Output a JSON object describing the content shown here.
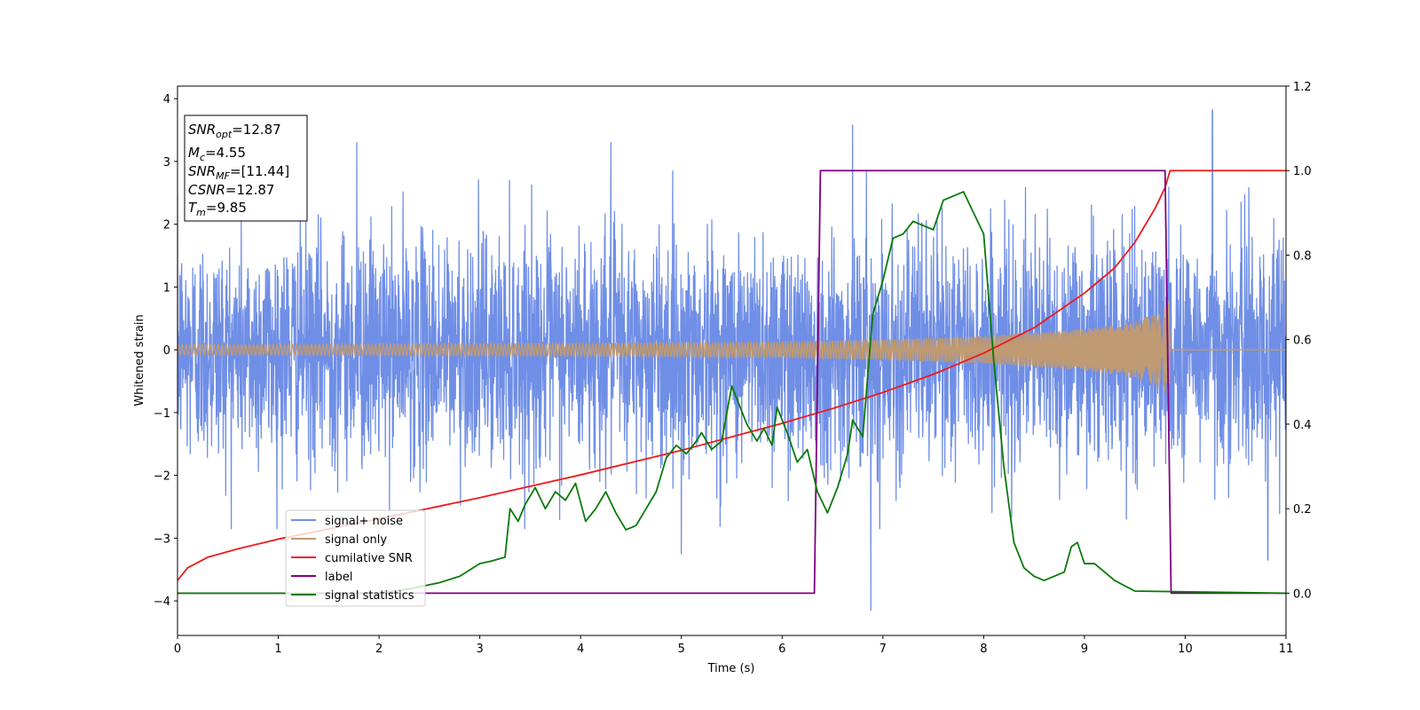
{
  "chart_data": {
    "type": "line",
    "xlabel": "Time (s)",
    "ylabel": "Whitened strain",
    "xlim": [
      0,
      11
    ],
    "ylim": [
      -4.55,
      4.2
    ],
    "ylim_right": [
      -0.1,
      1.2
    ],
    "x_ticks": [
      "0",
      "1",
      "2",
      "3",
      "4",
      "5",
      "6",
      "7",
      "8",
      "9",
      "10",
      "11"
    ],
    "y_ticks": [
      "−4",
      "−3",
      "−2",
      "−1",
      "0",
      "1",
      "2",
      "3",
      "4"
    ],
    "y_ticks_right": [
      "0.0",
      "0.2",
      "0.4",
      "0.6",
      "0.8",
      "1.0",
      "1.2"
    ],
    "grid": false,
    "legend_position": "lower-left",
    "info_box": {
      "lines": [
        {
          "name": "SNR",
          "sub": "opt",
          "value": "=12.87"
        },
        {
          "name": "M",
          "sub": "c",
          "value": "=4.55"
        },
        {
          "name": "SNR",
          "sub": "MF",
          "value": "=[11.44]"
        },
        {
          "name": "CSNR",
          "sub": "",
          "value": "=12.87"
        },
        {
          "name": "T",
          "sub": "m",
          "value": "=9.85"
        }
      ]
    },
    "series": [
      {
        "name": "signal+ noise",
        "axis": "left",
        "color": "#6f8ee6",
        "kind": "noise",
        "noise_sigma": 0.9,
        "t_range": [
          0,
          11
        ],
        "notable_extremes": [
          [
            1.78,
            3.3
          ],
          [
            4.3,
            3.3
          ],
          [
            6.7,
            3.58
          ],
          [
            6.88,
            -4.15
          ],
          [
            10.27,
            3.82
          ],
          [
            5.0,
            -3.25
          ],
          [
            10.82,
            -3.35
          ]
        ]
      },
      {
        "name": "signal only",
        "axis": "left",
        "color": "#bf9a73",
        "kind": "chirp",
        "amplitude_points": [
          [
            0,
            0.08
          ],
          [
            2,
            0.09
          ],
          [
            4,
            0.1
          ],
          [
            6,
            0.13
          ],
          [
            7,
            0.16
          ],
          [
            8,
            0.22
          ],
          [
            9,
            0.33
          ],
          [
            9.5,
            0.45
          ],
          [
            9.75,
            0.6
          ],
          [
            9.85,
            0.8
          ]
        ],
        "end_time": 9.85,
        "after_value": 0.0
      },
      {
        "name": "cumilative SNR",
        "axis": "right",
        "color": "#ee1a1a",
        "x": [
          0,
          0.1,
          0.3,
          0.6,
          1,
          2,
          3,
          4,
          5,
          6,
          6.5,
          7,
          7.5,
          8,
          8.5,
          9,
          9.3,
          9.5,
          9.7,
          9.8,
          9.85,
          9.88,
          11
        ],
        "y": [
          0.03,
          0.06,
          0.085,
          0.105,
          0.128,
          0.176,
          0.226,
          0.28,
          0.338,
          0.402,
          0.437,
          0.475,
          0.518,
          0.568,
          0.628,
          0.71,
          0.77,
          0.83,
          0.91,
          0.96,
          1.0,
          1.0,
          1.0
        ]
      },
      {
        "name": "label",
        "axis": "right",
        "color": "#800080",
        "x": [
          0,
          6.32,
          6.38,
          9.8,
          9.86,
          11
        ],
        "y": [
          0,
          0,
          1,
          1,
          0,
          0
        ]
      },
      {
        "name": "signal statistics",
        "axis": "right",
        "color": "#0a7a0a",
        "x": [
          0,
          2.0,
          2.3,
          2.6,
          2.8,
          3.0,
          3.1,
          3.25,
          3.3,
          3.38,
          3.45,
          3.55,
          3.65,
          3.75,
          3.85,
          3.95,
          4.05,
          4.15,
          4.25,
          4.35,
          4.45,
          4.55,
          4.65,
          4.75,
          4.85,
          4.95,
          5.05,
          5.15,
          5.2,
          5.3,
          5.4,
          5.5,
          5.55,
          5.65,
          5.75,
          5.82,
          5.9,
          5.95,
          6.05,
          6.15,
          6.25,
          6.35,
          6.45,
          6.55,
          6.65,
          6.7,
          6.8,
          6.9,
          7.0,
          7.1,
          7.2,
          7.3,
          7.4,
          7.5,
          7.6,
          7.7,
          7.8,
          7.9,
          8.0,
          8.1,
          8.2,
          8.3,
          8.4,
          8.5,
          8.6,
          8.7,
          8.8,
          8.87,
          8.93,
          9.0,
          9.1,
          9.2,
          9.3,
          9.5,
          11.0
        ],
        "y": [
          0,
          0.0,
          0.01,
          0.025,
          0.04,
          0.07,
          0.075,
          0.085,
          0.2,
          0.17,
          0.21,
          0.25,
          0.2,
          0.24,
          0.22,
          0.26,
          0.17,
          0.2,
          0.24,
          0.19,
          0.15,
          0.16,
          0.2,
          0.24,
          0.32,
          0.35,
          0.33,
          0.36,
          0.38,
          0.34,
          0.36,
          0.49,
          0.46,
          0.4,
          0.36,
          0.39,
          0.35,
          0.44,
          0.38,
          0.31,
          0.34,
          0.24,
          0.19,
          0.25,
          0.33,
          0.41,
          0.37,
          0.66,
          0.74,
          0.84,
          0.85,
          0.88,
          0.87,
          0.86,
          0.93,
          0.94,
          0.95,
          0.9,
          0.85,
          0.55,
          0.3,
          0.12,
          0.06,
          0.04,
          0.03,
          0.04,
          0.05,
          0.11,
          0.12,
          0.07,
          0.07,
          0.05,
          0.03,
          0.005,
          0.0
        ]
      }
    ]
  }
}
